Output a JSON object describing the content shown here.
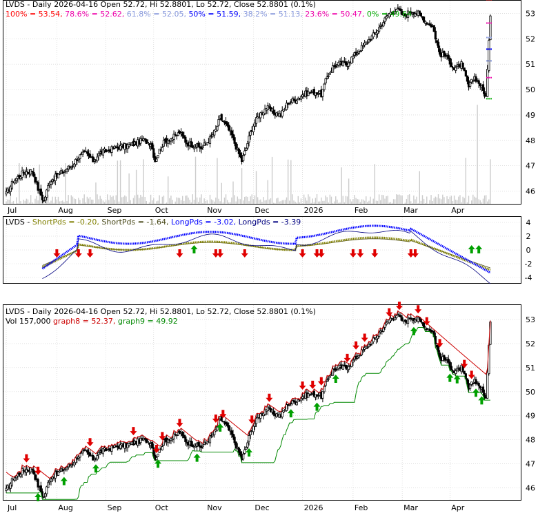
{
  "colors": {
    "bg": "#ffffff",
    "frame": "#000000",
    "grid": "#c8c8c8",
    "fib_100": "#ff0000",
    "fib_78": "#ee00aa",
    "fib_61": "#8899dd",
    "fib_50": "#0000ff",
    "fib_38": "#8899dd",
    "fib_23": "#ee00aa",
    "fib_0": "#00aa00",
    "short_pds": "#808000",
    "short_pds2": "#4a4a1a",
    "long_pds": "#0000ff",
    "long_pds2": "#000080",
    "arrow_up": "#00a000",
    "arrow_down": "#e00000",
    "graph8": "#cc0000",
    "graph9": "#008800",
    "volume": "#cccccc"
  },
  "header": {
    "symbol": "LVDS",
    "main_title": "LVDS - Daily 2026-04-16 Open 52.72, Hi 52.8801, Lo 52.72, Close 52.8801 (0.1%)",
    "fib": [
      {
        "label": "100% = 53.54",
        "key": "fib_100"
      },
      {
        "label": "78.6% = 52.62",
        "key": "fib_78"
      },
      {
        "label": "61.8% = 52.05",
        "key": "fib_61"
      },
      {
        "label": "50% = 51.59",
        "key": "fib_50"
      },
      {
        "label": "38.2% = 51.13",
        "key": "fib_38"
      },
      {
        "label": "23.6% = 50.47",
        "key": "fib_23"
      },
      {
        "label": "0% = 49.64",
        "key": "fib_0"
      }
    ],
    "ind_title": [
      {
        "text": "LVDS - ",
        "key": "frame"
      },
      {
        "text": "ShortPds = -0.20, ",
        "key": "short_pds"
      },
      {
        "text": "ShortPds = -1.64, ",
        "key": "short_pds2"
      },
      {
        "text": "LongPds = -3.02, ",
        "key": "long_pds"
      },
      {
        "text": "LongPds = -3.39",
        "key": "long_pds2"
      }
    ],
    "bottom_title": "LVDS - Daily 2026-04-16 Open 52.72, Hi 52.8801, Lo 52.72, Close 52.8801 (0.1%)",
    "bottom_sub": [
      {
        "text": "Vol 157,000 ",
        "key": "frame"
      },
      {
        "text": "graph8 = 52.37, ",
        "key": "graph8"
      },
      {
        "text": "graph9 = 49.92",
        "key": "graph9"
      }
    ]
  },
  "chart_data": [
    {
      "type": "candlestick",
      "title": "LVDS - Daily 2026-04-16 Open 52.72, Hi 52.8801, Lo 52.72, Close 52.8801 (0.1%)",
      "x_tick_labels": [
        "Jul",
        "Aug",
        "Sep",
        "Oct",
        "Nov",
        "Dec",
        "2026",
        "Feb",
        "Mar",
        "Apr"
      ],
      "y_tick_labels": [
        46,
        47,
        48,
        49,
        50,
        51,
        52,
        53
      ],
      "ylim": [
        45.5,
        53.5
      ],
      "close_anchors": [
        [
          0,
          45.9
        ],
        [
          5,
          46.4
        ],
        [
          12,
          46.75
        ],
        [
          18,
          46.8
        ],
        [
          22,
          46.1
        ],
        [
          26,
          45.6
        ],
        [
          30,
          46.4
        ],
        [
          35,
          46.6
        ],
        [
          40,
          46.8
        ],
        [
          45,
          47.0
        ],
        [
          50,
          47.35
        ],
        [
          55,
          47.5
        ],
        [
          60,
          47.2
        ],
        [
          65,
          47.5
        ],
        [
          70,
          47.6
        ],
        [
          75,
          47.7
        ],
        [
          80,
          47.75
        ],
        [
          85,
          47.8
        ],
        [
          90,
          47.9
        ],
        [
          95,
          48.0
        ],
        [
          100,
          47.9
        ],
        [
          103,
          47.2
        ],
        [
          106,
          47.6
        ],
        [
          110,
          48.0
        ],
        [
          115,
          48.1
        ],
        [
          120,
          48.3
        ],
        [
          125,
          47.9
        ],
        [
          130,
          47.8
        ],
        [
          135,
          47.7
        ],
        [
          140,
          48.0
        ],
        [
          145,
          48.4
        ],
        [
          148,
          48.9
        ],
        [
          152,
          48.6
        ],
        [
          156,
          48.2
        ],
        [
          160,
          47.6
        ],
        [
          163,
          47.2
        ],
        [
          166,
          47.7
        ],
        [
          170,
          48.5
        ],
        [
          175,
          49.0
        ],
        [
          180,
          49.3
        ],
        [
          185,
          49.1
        ],
        [
          190,
          49.0
        ],
        [
          195,
          49.5
        ],
        [
          200,
          49.6
        ],
        [
          205,
          49.8
        ],
        [
          210,
          49.9
        ],
        [
          215,
          49.9
        ],
        [
          218,
          49.8
        ],
        [
          222,
          50.5
        ],
        [
          226,
          50.9
        ],
        [
          230,
          51.0
        ],
        [
          235,
          51.0
        ],
        [
          240,
          51.3
        ],
        [
          245,
          51.6
        ],
        [
          250,
          51.9
        ],
        [
          255,
          52.2
        ],
        [
          260,
          52.6
        ],
        [
          265,
          53.0
        ],
        [
          270,
          53.2
        ],
        [
          275,
          52.9
        ],
        [
          280,
          53.1
        ],
        [
          285,
          53.0
        ],
        [
          290,
          52.7
        ],
        [
          295,
          52.5
        ],
        [
          300,
          51.4
        ],
        [
          305,
          51.3
        ],
        [
          310,
          50.8
        ],
        [
          315,
          51.0
        ],
        [
          320,
          50.1
        ],
        [
          324,
          50.5
        ],
        [
          328,
          50.2
        ],
        [
          332,
          49.7
        ],
        [
          335,
          52.9
        ]
      ],
      "fib_levels": [
        {
          "label": "100%",
          "value": 53.54
        },
        {
          "label": "78.6%",
          "value": 52.62
        },
        {
          "label": "61.8%",
          "value": 52.05
        },
        {
          "label": "50%",
          "value": 51.59
        },
        {
          "label": "38.2%",
          "value": 51.13
        },
        {
          "label": "23.6%",
          "value": 50.47
        },
        {
          "label": "0%",
          "value": 49.64
        }
      ]
    },
    {
      "type": "line",
      "title": "LVDS - ShortPds = -0.20, ShortPds = -1.64, LongPds = -3.02, LongPds = -3.39",
      "x_tick_labels": [],
      "y_tick_labels": [
        4,
        2,
        0,
        -2,
        -4
      ],
      "ylim": [
        -4.8,
        4.8
      ],
      "series": [
        {
          "name": "ShortPds",
          "value": -0.2
        },
        {
          "name": "ShortPds",
          "value": -1.64
        },
        {
          "name": "LongPds",
          "value": -3.02
        },
        {
          "name": "LongPds",
          "value": -3.39
        }
      ],
      "down_arrow_positions": [
        35,
        50,
        58,
        120,
        145,
        148,
        165,
        205,
        215,
        218,
        240,
        245,
        255,
        280,
        283
      ],
      "up_arrow_positions": [
        130,
        322,
        327
      ]
    },
    {
      "type": "candlestick",
      "title": "LVDS - Daily 2026-04-16 Open 52.72, Hi 52.8801, Lo 52.72, Close 52.8801 (0.1%)",
      "x_tick_labels": [
        "Jul",
        "Aug",
        "Sep",
        "Oct",
        "Nov",
        "Dec",
        "2026",
        "Feb",
        "Mar",
        "Apr"
      ],
      "y_tick_labels": [
        46,
        47,
        48,
        49,
        50,
        51,
        52,
        53
      ],
      "ylim": [
        45.5,
        53.6
      ],
      "series": [
        {
          "name": "graph8",
          "value": 52.37
        },
        {
          "name": "graph9",
          "value": 49.92
        }
      ],
      "volume": 157000
    }
  ]
}
